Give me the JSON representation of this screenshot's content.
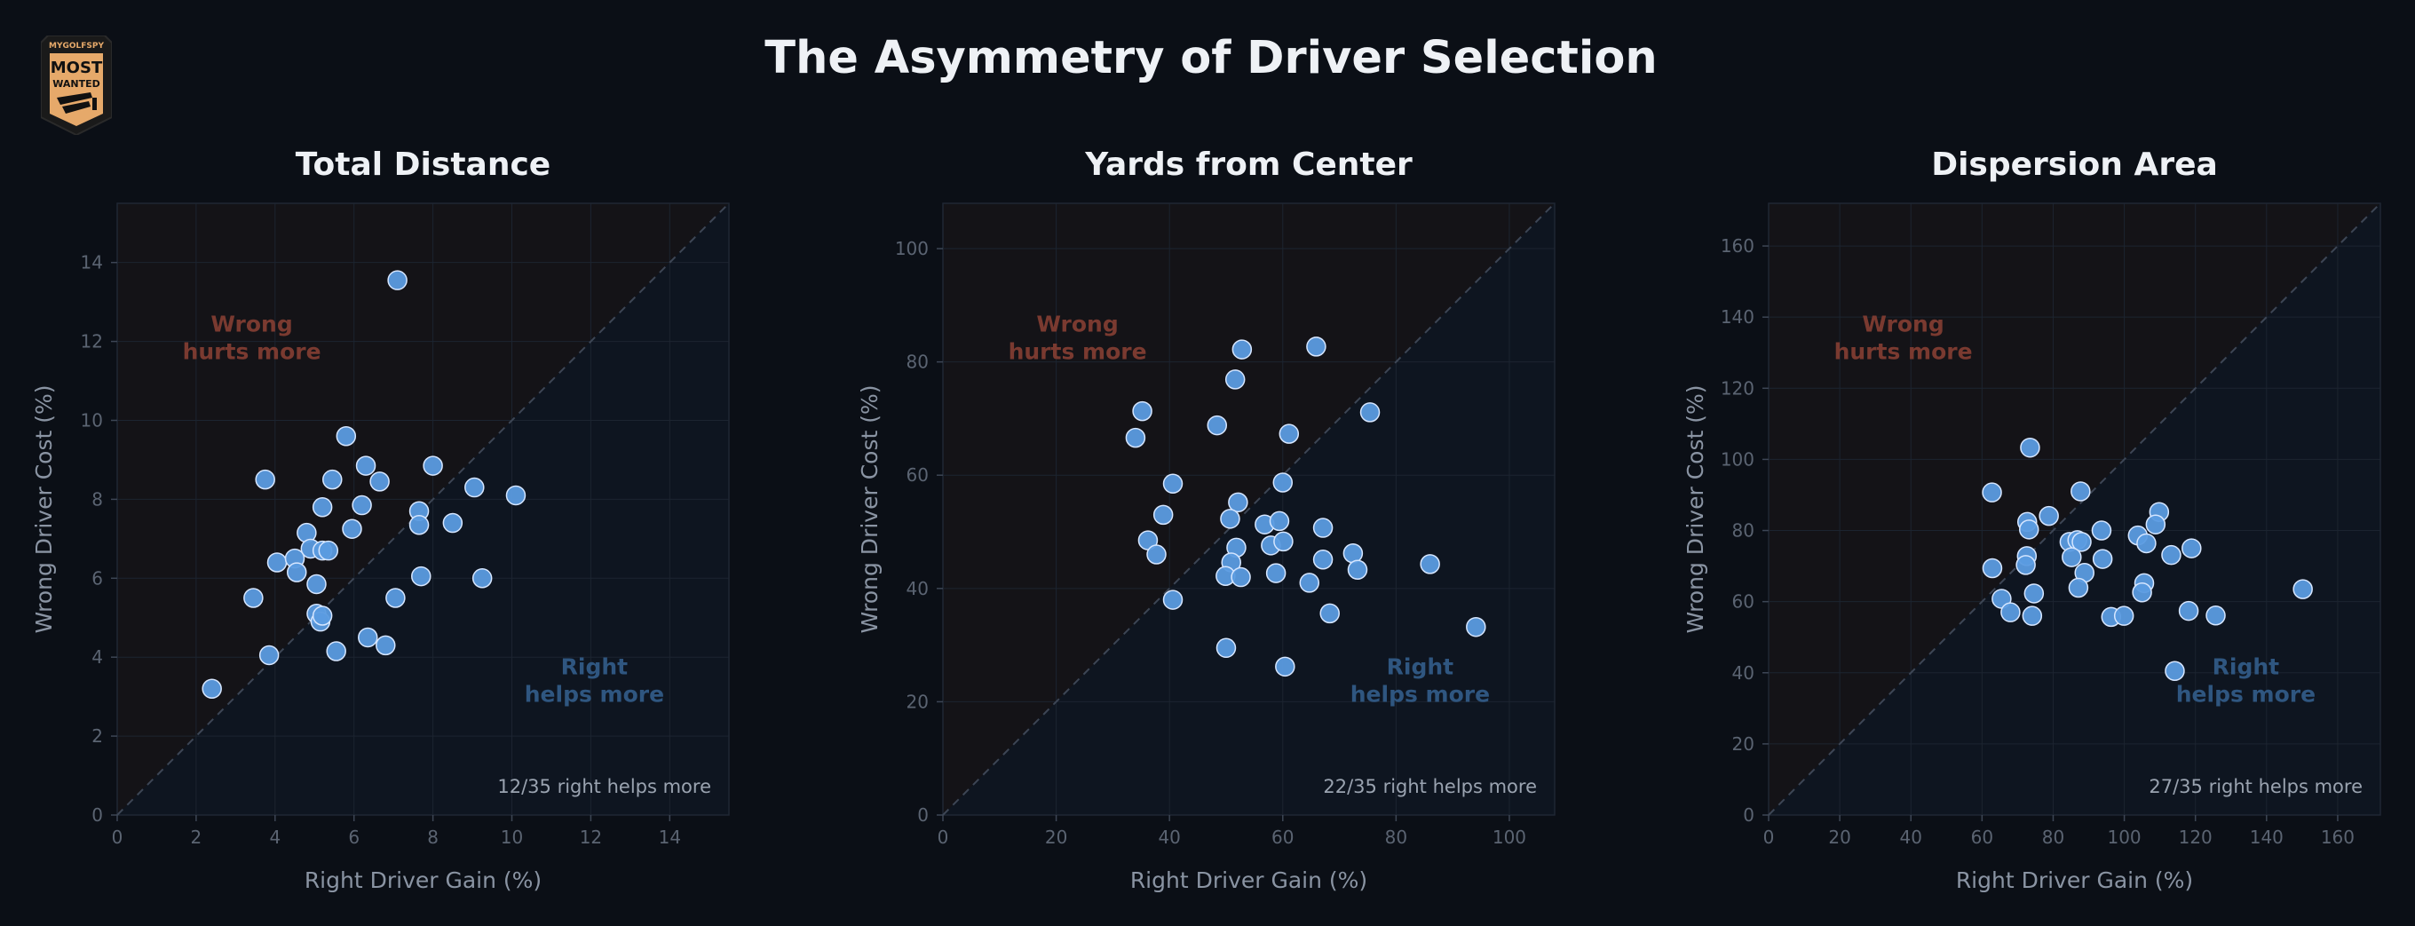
{
  "title": "The Asymmetry of Driver Selection",
  "logo": {
    "top_text": "MYGOLFSPY",
    "line1": "MOST",
    "line2": "WANTED",
    "bg": "#e6a96a"
  },
  "colors": {
    "background": "#0b0f16",
    "point": "#5b9be0",
    "point_edge": "#d6e6ff",
    "wrong_zone": "#141317",
    "right_zone": "#0e1520",
    "wrong_text": "#7a3a30",
    "right_text": "#2f5680",
    "axis_text": "#8a94a3",
    "tick_text": "#5b6472"
  },
  "chart_data": [
    {
      "type": "scatter",
      "title": "Total Distance",
      "xlabel": "Right Driver Gain (%)",
      "ylabel": "Wrong Driver Cost (%)",
      "xlim": [
        0,
        15.5
      ],
      "ylim": [
        0,
        15.5
      ],
      "xticks": [
        0,
        2,
        4,
        6,
        8,
        10,
        12,
        14
      ],
      "yticks": [
        0,
        2,
        4,
        6,
        8,
        10,
        12,
        14
      ],
      "annotation_wrong": [
        "Wrong",
        "hurts more"
      ],
      "annotation_right": [
        "Right",
        "helps more"
      ],
      "summary": "12/35 right helps more",
      "points": [
        [
          7.1,
          13.55
        ],
        [
          5.8,
          9.6
        ],
        [
          3.75,
          8.5
        ],
        [
          5.45,
          8.5
        ],
        [
          6.3,
          8.85
        ],
        [
          6.65,
          8.45
        ],
        [
          8.0,
          8.85
        ],
        [
          9.05,
          8.3
        ],
        [
          10.1,
          8.1
        ],
        [
          5.2,
          7.8
        ],
        [
          6.2,
          7.85
        ],
        [
          7.65,
          7.7
        ],
        [
          7.65,
          7.35
        ],
        [
          8.5,
          7.4
        ],
        [
          5.95,
          7.25
        ],
        [
          4.8,
          7.15
        ],
        [
          4.9,
          6.75
        ],
        [
          5.2,
          6.7
        ],
        [
          5.35,
          6.7
        ],
        [
          4.05,
          6.4
        ],
        [
          4.5,
          6.5
        ],
        [
          4.55,
          6.15
        ],
        [
          5.05,
          5.85
        ],
        [
          7.7,
          6.05
        ],
        [
          9.25,
          6.0
        ],
        [
          3.45,
          5.5
        ],
        [
          7.05,
          5.5
        ],
        [
          5.05,
          5.1
        ],
        [
          5.15,
          4.9
        ],
        [
          5.2,
          5.05
        ],
        [
          6.35,
          4.5
        ],
        [
          5.55,
          4.15
        ],
        [
          6.8,
          4.3
        ],
        [
          3.85,
          4.05
        ],
        [
          2.4,
          3.2
        ]
      ]
    },
    {
      "type": "scatter",
      "title": "Yards from Center",
      "xlabel": "Right Driver Gain (%)",
      "ylabel": "Wrong Driver Cost (%)",
      "xlim": [
        0,
        108
      ],
      "ylim": [
        0,
        108
      ],
      "xticks": [
        0,
        20,
        40,
        60,
        80,
        100
      ],
      "yticks": [
        0,
        20,
        40,
        60,
        80,
        100
      ],
      "annotation_wrong": [
        "Wrong",
        "hurts more"
      ],
      "annotation_right": [
        "Right",
        "helps more"
      ],
      "summary": "22/35 right helps more",
      "points": [
        [
          52.8,
          82.2
        ],
        [
          65.9,
          82.7
        ],
        [
          51.6,
          76.9
        ],
        [
          35.2,
          71.3
        ],
        [
          75.4,
          71.1
        ],
        [
          48.4,
          68.8
        ],
        [
          61.1,
          67.3
        ],
        [
          34.0,
          66.6
        ],
        [
          40.6,
          58.5
        ],
        [
          60.0,
          58.7
        ],
        [
          52.1,
          55.2
        ],
        [
          38.9,
          53.0
        ],
        [
          50.7,
          52.3
        ],
        [
          56.8,
          51.3
        ],
        [
          59.4,
          51.9
        ],
        [
          67.1,
          50.7
        ],
        [
          36.2,
          48.5
        ],
        [
          51.8,
          47.2
        ],
        [
          57.9,
          47.6
        ],
        [
          60.1,
          48.3
        ],
        [
          37.7,
          46.0
        ],
        [
          72.4,
          46.2
        ],
        [
          50.9,
          44.6
        ],
        [
          67.1,
          45.1
        ],
        [
          86.0,
          44.3
        ],
        [
          49.9,
          42.2
        ],
        [
          52.6,
          42.0
        ],
        [
          58.8,
          42.7
        ],
        [
          73.2,
          43.3
        ],
        [
          64.7,
          41.0
        ],
        [
          40.6,
          38.0
        ],
        [
          68.3,
          35.6
        ],
        [
          94.1,
          33.2
        ],
        [
          50.0,
          29.5
        ],
        [
          60.4,
          26.2
        ]
      ]
    },
    {
      "type": "scatter",
      "title": "Dispersion Area",
      "xlabel": "Right Driver Gain (%)",
      "ylabel": "Wrong Driver Cost (%)",
      "xlim": [
        0,
        172
      ],
      "ylim": [
        0,
        172
      ],
      "xticks": [
        0,
        20,
        40,
        60,
        80,
        100,
        120,
        140,
        160
      ],
      "yticks": [
        0,
        20,
        40,
        60,
        80,
        100,
        120,
        140,
        160
      ],
      "annotation_wrong": [
        "Wrong",
        "hurts more"
      ],
      "annotation_right": [
        "Right",
        "helps more"
      ],
      "summary": "27/35 right helps more",
      "points": [
        [
          73.5,
          103.3
        ],
        [
          62.8,
          90.7
        ],
        [
          87.7,
          91.0
        ],
        [
          109.8,
          85.2
        ],
        [
          78.8,
          84.1
        ],
        [
          72.7,
          82.4
        ],
        [
          73.2,
          80.3
        ],
        [
          108.8,
          81.7
        ],
        [
          93.6,
          80.0
        ],
        [
          103.8,
          78.6
        ],
        [
          84.6,
          76.8
        ],
        [
          86.8,
          77.3
        ],
        [
          106.2,
          76.4
        ],
        [
          118.9,
          75.0
        ],
        [
          88.0,
          76.8
        ],
        [
          113.2,
          73.1
        ],
        [
          72.6,
          72.8
        ],
        [
          85.2,
          72.5
        ],
        [
          93.9,
          72.0
        ],
        [
          72.3,
          70.3
        ],
        [
          62.9,
          69.4
        ],
        [
          88.8,
          68.1
        ],
        [
          105.6,
          65.2
        ],
        [
          87.1,
          63.9
        ],
        [
          150.2,
          63.5
        ],
        [
          105.0,
          62.6
        ],
        [
          74.6,
          62.3
        ],
        [
          65.5,
          60.8
        ],
        [
          118.1,
          57.4
        ],
        [
          68.0,
          57.0
        ],
        [
          74.1,
          56.0
        ],
        [
          96.3,
          55.7
        ],
        [
          99.9,
          56.0
        ],
        [
          125.7,
          56.1
        ],
        [
          114.2,
          40.5
        ]
      ]
    }
  ]
}
